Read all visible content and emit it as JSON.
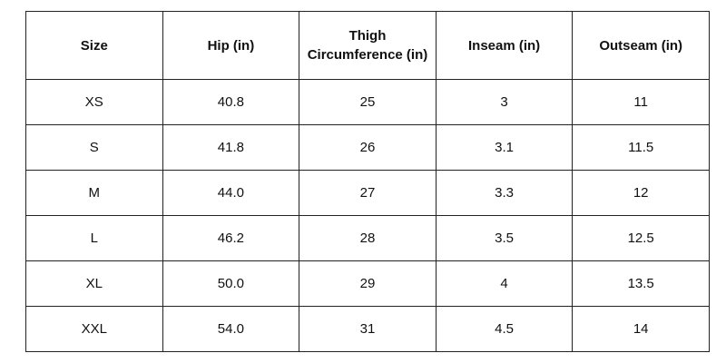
{
  "table": {
    "headers": {
      "size": "Size",
      "hip": "Hip (in)",
      "thigh_line1": "Thigh",
      "thigh_line2": "Circumference (in)",
      "inseam": "Inseam (in)",
      "outseam": "Outseam (in)"
    },
    "rows": [
      {
        "size": "XS",
        "hip": "40.8",
        "thigh": "25",
        "inseam": "3",
        "outseam": "11"
      },
      {
        "size": "S",
        "hip": "41.8",
        "thigh": "26",
        "inseam": "3.1",
        "outseam": "11.5"
      },
      {
        "size": "M",
        "hip": "44.0",
        "thigh": "27",
        "inseam": "3.3",
        "outseam": "12"
      },
      {
        "size": "L",
        "hip": "46.2",
        "thigh": "28",
        "inseam": "3.5",
        "outseam": "12.5"
      },
      {
        "size": "XL",
        "hip": "50.0",
        "thigh": "29",
        "inseam": "4",
        "outseam": "13.5"
      },
      {
        "size": "XXL",
        "hip": "54.0",
        "thigh": "31",
        "inseam": "4.5",
        "outseam": "14"
      }
    ]
  }
}
